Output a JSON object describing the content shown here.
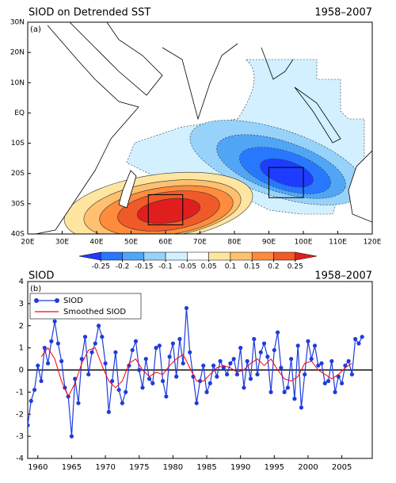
{
  "chart_data": [
    {
      "type": "map",
      "title": "SIOD on Detrended SST",
      "subtitle": "1958–2007",
      "panel_label": "(a)",
      "xlim": [
        20,
        120
      ],
      "ylim": [
        -40,
        30
      ],
      "xticks": [
        {
          "value": 20,
          "label": "20E"
        },
        {
          "value": 30,
          "label": "30E"
        },
        {
          "value": 40,
          "label": "40E"
        },
        {
          "value": 50,
          "label": "50E"
        },
        {
          "value": 60,
          "label": "60E"
        },
        {
          "value": 70,
          "label": "70E"
        },
        {
          "value": 80,
          "label": "80E"
        },
        {
          "value": 90,
          "label": "90E"
        },
        {
          "value": 100,
          "label": "100E"
        },
        {
          "value": 110,
          "label": "110E"
        },
        {
          "value": 120,
          "label": "120E"
        }
      ],
      "yticks": [
        {
          "value": 30,
          "label": "30N"
        },
        {
          "value": 20,
          "label": "20N"
        },
        {
          "value": 10,
          "label": "10N"
        },
        {
          "value": 0,
          "label": "EQ"
        },
        {
          "value": -10,
          "label": "10S"
        },
        {
          "value": -20,
          "label": "20S"
        },
        {
          "value": -30,
          "label": "30S"
        },
        {
          "value": -40,
          "label": "40S"
        }
      ],
      "levels": [
        -0.25,
        -0.2,
        -0.15,
        -0.1,
        -0.05,
        0.05,
        0.1,
        0.15,
        0.2,
        0.25
      ],
      "colors": [
        "#1e3cff",
        "#2878ff",
        "#50a5f5",
        "#96d2fa",
        "#d2f0ff",
        "#ffffff",
        "#ffe6a0",
        "#ffc070",
        "#ff8c3c",
        "#f05a28",
        "#e11e1e"
      ],
      "boxes": [
        {
          "lon": [
            55,
            65
          ],
          "lat": [
            -37,
            -27
          ]
        },
        {
          "lon": [
            90,
            100
          ],
          "lat": [
            -28,
            -18
          ]
        }
      ]
    },
    {
      "type": "line",
      "title": "SIOD",
      "subtitle": "1958–2007",
      "panel_label": "(b)",
      "xlim": [
        1958.5,
        2009.5
      ],
      "ylim": [
        -4,
        4
      ],
      "xticks": [
        1960,
        1965,
        1970,
        1975,
        1980,
        1985,
        1990,
        1995,
        2000,
        2005
      ],
      "yticks": [
        -4,
        -3,
        -2,
        -1,
        0,
        1,
        2,
        3,
        4
      ],
      "series": [
        {
          "name": "SIOD",
          "color": "#1e3cdc",
          "x": [
            1958.5,
            1959,
            1959.5,
            1960,
            1960.5,
            1961,
            1961.5,
            1962,
            1962.5,
            1963,
            1963.5,
            1964,
            1964.5,
            1965,
            1965.5,
            1966,
            1966.5,
            1967,
            1967.5,
            1968,
            1968.5,
            1969,
            1969.5,
            1970,
            1970.5,
            1971,
            1971.5,
            1972,
            1972.5,
            1973,
            1973.5,
            1974,
            1974.5,
            1975,
            1975.5,
            1976,
            1976.5,
            1977,
            1977.5,
            1978,
            1978.5,
            1979,
            1979.5,
            1980,
            1980.5,
            1981,
            1981.5,
            1982,
            1982.5,
            1983,
            1983.5,
            1984,
            1984.5,
            1985,
            1985.5,
            1986,
            1986.5,
            1987,
            1987.5,
            1988,
            1988.5,
            1989,
            1989.5,
            1990,
            1990.5,
            1991,
            1991.5,
            1992,
            1992.5,
            1993,
            1993.5,
            1994,
            1994.5,
            1995,
            1995.5,
            1996,
            1996.5,
            1997,
            1997.5,
            1998,
            1998.5,
            1999,
            1999.5,
            2000,
            2000.5,
            2001,
            2001.5,
            2002,
            2002.5,
            2003,
            2003.5,
            2004,
            2004.5,
            2005,
            2005.5,
            2006,
            2006.5,
            2007,
            2007.5,
            2008
          ],
          "values": [
            -2.5,
            -1.4,
            -0.9,
            0.2,
            -0.5,
            1.0,
            0.3,
            1.3,
            2.2,
            1.2,
            0.4,
            -0.8,
            -1.2,
            -3.0,
            -0.4,
            -1.5,
            0.5,
            1.5,
            -0.2,
            0.8,
            1.2,
            2.0,
            1.5,
            0.3,
            -1.9,
            -0.5,
            0.8,
            -0.9,
            -1.5,
            -1.0,
            0.2,
            0.9,
            1.3,
            0.0,
            -0.8,
            0.5,
            -0.4,
            -0.6,
            1.0,
            1.1,
            -0.5,
            -1.2,
            0.6,
            1.2,
            -0.3,
            1.4,
            0.3,
            2.8,
            0.8,
            -0.3,
            -1.5,
            -0.5,
            0.2,
            -1.0,
            -0.6,
            0.2,
            -0.3,
            0.4,
            0.1,
            -0.2,
            0.3,
            0.5,
            -0.2,
            1.0,
            -0.8,
            0.4,
            -0.4,
            1.4,
            -0.2,
            0.8,
            1.2,
            0.6,
            -1.0,
            0.9,
            1.7,
            0.1,
            -1.0,
            -0.8,
            0.5,
            -1.3,
            1.1,
            -1.7,
            -0.2,
            1.3,
            0.5,
            1.1,
            0.2,
            0.3,
            -0.6,
            -0.5,
            0.4,
            -1.0,
            -0.3,
            -0.6,
            0.2,
            0.4,
            -0.2,
            1.4,
            1.2,
            1.5
          ]
        },
        {
          "name": "Smoothed SIOD",
          "color": "#ff0000",
          "x": [
            1960.5,
            1961.5,
            1962.5,
            1963.5,
            1964.5,
            1965.5,
            1966.5,
            1967.5,
            1968.5,
            1969.5,
            1970.5,
            1971.5,
            1972.5,
            1973.5,
            1974.5,
            1975.5,
            1976.5,
            1977.5,
            1978.5,
            1979.5,
            1980.5,
            1981.5,
            1982.5,
            1983.5,
            1984.5,
            1985.5,
            1986.5,
            1987.5,
            1988.5,
            1989.5,
            1990.5,
            1991.5,
            1992.5,
            1993.5,
            1994.5,
            1995.5,
            1996.5,
            1997.5,
            1998.5,
            1999.5,
            2000.5,
            2001.5,
            2002.5,
            2003.5,
            2004.5,
            2005.5,
            2006.5
          ],
          "values": [
            0.6,
            1.0,
            0.5,
            -0.5,
            -1.2,
            -0.6,
            0.3,
            0.9,
            1.0,
            0.2,
            -0.5,
            -0.8,
            -0.5,
            0.3,
            0.5,
            0.0,
            -0.3,
            -0.1,
            -0.2,
            0.2,
            0.5,
            0.7,
            0.1,
            -0.5,
            -0.5,
            -0.2,
            0.1,
            0.2,
            0.1,
            -0.1,
            0.0,
            0.3,
            0.5,
            0.2,
            0.5,
            0.0,
            -0.4,
            -0.5,
            -0.3,
            0.3,
            0.4,
            0.0,
            -0.2,
            -0.4,
            -0.2,
            0.1,
            0.3
          ]
        }
      ]
    }
  ]
}
